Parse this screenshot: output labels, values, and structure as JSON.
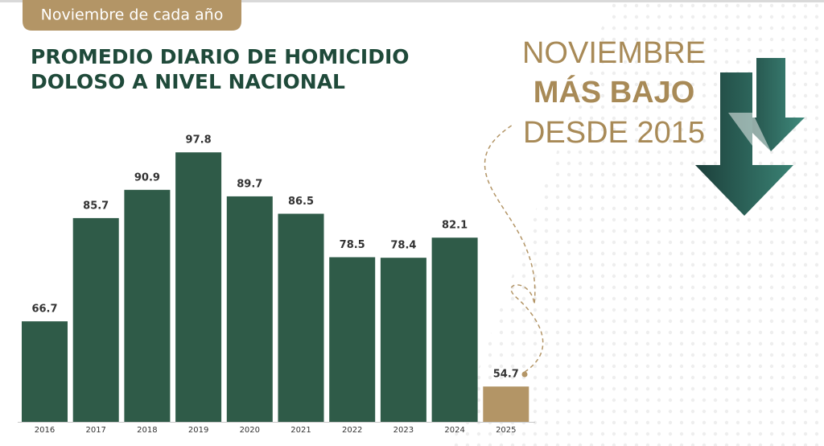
{
  "chart_data": {
    "type": "bar",
    "badge": "Noviembre de cada año",
    "title_lines": [
      "PROMEDIO DIARIO DE HOMICIDIO",
      "DOLOSO A NIVEL NACIONAL"
    ],
    "annotation_lines": [
      "NOVIEMBRE",
      "MÁS BAJO",
      "DESDE 2015"
    ],
    "categories": [
      "2016",
      "2017",
      "2018",
      "2019",
      "2020",
      "2021",
      "2022",
      "2023",
      "2024",
      "2025"
    ],
    "values": [
      66.7,
      85.7,
      90.9,
      97.8,
      89.7,
      86.5,
      78.5,
      78.4,
      82.1,
      54.7
    ],
    "colors": [
      "#2f5b48",
      "#2f5b48",
      "#2f5b48",
      "#2f5b48",
      "#2f5b48",
      "#2f5b48",
      "#2f5b48",
      "#2f5b48",
      "#2f5b48",
      "#b39566"
    ],
    "ylim": [
      48.2,
      100
    ]
  }
}
